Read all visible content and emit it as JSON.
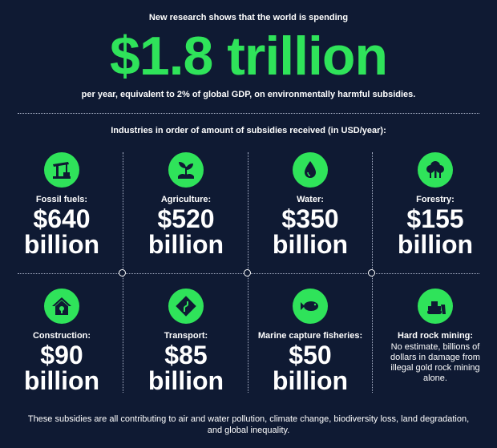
{
  "intro": "New research shows that the world is spending",
  "headline": "$1.8 trillion",
  "subline": "per year, equivalent to 2% of global GDP, on environmentally harmful subsidies.",
  "section_title": "Industries in order of amount of subsidies received (in USD/year):",
  "accent_color": "#2fe35a",
  "background_color": "#0f1a33",
  "industries": [
    {
      "label": "Fossil fuels:",
      "amount": "$640",
      "unit": "billion",
      "icon": "oil-pump-icon"
    },
    {
      "label": "Agriculture:",
      "amount": "$520",
      "unit": "billion",
      "icon": "sprout-icon"
    },
    {
      "label": "Water:",
      "amount": "$350",
      "unit": "billion",
      "icon": "water-drop-icon"
    },
    {
      "label": "Forestry:",
      "amount": "$155",
      "unit": "billion",
      "icon": "trees-icon"
    },
    {
      "label": "Construction:",
      "amount": "$90",
      "unit": "billion",
      "icon": "house-wrench-icon"
    },
    {
      "label": "Transport:",
      "amount": "$85",
      "unit": "billion",
      "icon": "road-sign-icon"
    },
    {
      "label": "Marine capture fisheries:",
      "amount": "$50",
      "unit": "billion",
      "icon": "fish-icon"
    },
    {
      "label": "Hard rock mining:",
      "note": "No estimate, billions of dollars in damage from illegal gold rock mining alone.",
      "icon": "bulldozer-icon"
    }
  ],
  "footer": "These subsidies are all contributing to air and water pollution, climate change, biodiversity loss, land degradation, and global inequality."
}
